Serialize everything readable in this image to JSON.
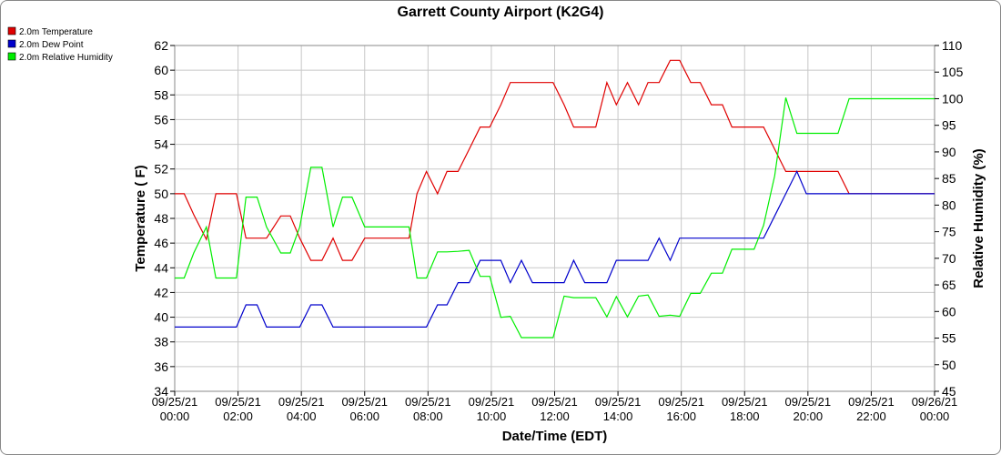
{
  "chart_data": {
    "type": "line",
    "title": "Garrett County Airport (K2G4)",
    "xlabel": "Date/Time (EDT)",
    "ylabel_left": "Temperature ( F)",
    "ylabel_right": "Relative Humidity (%)",
    "ylim_left": [
      34,
      62
    ],
    "ylim_right": [
      45,
      110
    ],
    "yticks_left": [
      34,
      36,
      38,
      40,
      42,
      44,
      46,
      48,
      50,
      52,
      54,
      56,
      58,
      60,
      62
    ],
    "yticks_right": [
      45,
      50,
      55,
      60,
      65,
      70,
      75,
      80,
      85,
      90,
      95,
      100,
      105,
      110
    ],
    "xlim_hours": [
      0,
      24
    ],
    "xticks": [
      {
        "h": 0,
        "date": "09/25/21",
        "time": "00:00"
      },
      {
        "h": 2,
        "date": "09/25/21",
        "time": "02:00"
      },
      {
        "h": 4,
        "date": "09/25/21",
        "time": "04:00"
      },
      {
        "h": 6,
        "date": "09/25/21",
        "time": "06:00"
      },
      {
        "h": 8,
        "date": "09/25/21",
        "time": "08:00"
      },
      {
        "h": 10,
        "date": "09/25/21",
        "time": "10:00"
      },
      {
        "h": 12,
        "date": "09/25/21",
        "time": "12:00"
      },
      {
        "h": 14,
        "date": "09/25/21",
        "time": "14:00"
      },
      {
        "h": 16,
        "date": "09/25/21",
        "time": "16:00"
      },
      {
        "h": 18,
        "date": "09/25/21",
        "time": "18:00"
      },
      {
        "h": 20,
        "date": "09/25/21",
        "time": "20:00"
      },
      {
        "h": 22,
        "date": "09/25/21",
        "time": "22:00"
      },
      {
        "h": 24,
        "date": "09/26/21",
        "time": "00:00"
      }
    ],
    "grid": true,
    "legend_position": "top-left",
    "series": [
      {
        "name": "2.0m Temperature",
        "color": "#e00000",
        "axis": "left",
        "x": [
          0,
          0.3,
          0.6,
          1.0,
          1.3,
          1.6,
          1.95,
          2.25,
          2.6,
          2.9,
          3.35,
          3.65,
          3.95,
          4.3,
          4.65,
          5.0,
          5.3,
          5.6,
          6.0,
          6.35,
          6.65,
          7.0,
          7.4,
          7.65,
          7.95,
          8.3,
          8.6,
          8.95,
          9.3,
          9.65,
          9.95,
          10.3,
          10.6,
          10.95,
          11.3,
          11.65,
          11.95,
          12.3,
          12.6,
          12.95,
          13.3,
          13.65,
          13.95,
          14.3,
          14.65,
          14.95,
          15.3,
          15.65,
          15.95,
          16.3,
          16.6,
          16.95,
          17.3,
          17.6,
          17.95,
          18.3,
          18.6,
          18.95,
          19.3,
          19.65,
          19.95,
          20.3,
          20.6,
          20.95,
          21.3,
          21.65,
          21.95,
          22.3,
          22.6,
          22.95,
          23.3,
          23.65,
          24.0
        ],
        "y": [
          50,
          50,
          48.3,
          46.3,
          50,
          50,
          50,
          46.4,
          46.4,
          46.4,
          48.2,
          48.2,
          46.4,
          44.6,
          44.6,
          46.4,
          44.6,
          44.6,
          46.4,
          46.4,
          46.4,
          46.4,
          46.4,
          50,
          51.8,
          50,
          51.8,
          51.8,
          53.6,
          55.4,
          55.4,
          57.2,
          59,
          59,
          59,
          59,
          59,
          57.2,
          55.4,
          55.4,
          55.4,
          59,
          57.2,
          59,
          57.2,
          59,
          59,
          60.8,
          60.8,
          59,
          59,
          57.2,
          57.2,
          55.4,
          55.4,
          55.4,
          55.4,
          53.6,
          51.8,
          51.8,
          51.8,
          51.8,
          51.8,
          51.8,
          50,
          50,
          50,
          50,
          50,
          50,
          50,
          50,
          50
        ]
      },
      {
        "name": "2.0m Dew Point",
        "color": "#0000cc",
        "axis": "left",
        "x": [
          0,
          0.3,
          0.6,
          1.0,
          1.3,
          1.6,
          1.95,
          2.25,
          2.6,
          2.9,
          3.35,
          3.65,
          3.95,
          4.3,
          4.65,
          5.0,
          5.3,
          5.6,
          6.0,
          6.35,
          6.65,
          7.0,
          7.4,
          7.95,
          8.3,
          8.6,
          8.95,
          9.3,
          9.65,
          9.95,
          10.3,
          10.6,
          10.95,
          11.3,
          11.65,
          11.95,
          12.3,
          12.6,
          12.95,
          13.3,
          13.65,
          13.95,
          14.3,
          14.65,
          14.95,
          15.3,
          15.65,
          15.95,
          16.3,
          16.6,
          16.95,
          17.3,
          17.6,
          17.95,
          18.3,
          18.6,
          18.95,
          19.3,
          19.65,
          19.95,
          20.3,
          20.6,
          20.95,
          21.3,
          21.65,
          21.95,
          22.3,
          22.6,
          22.95,
          23.3,
          23.65,
          24.0
        ],
        "y": [
          39.2,
          39.2,
          39.2,
          39.2,
          39.2,
          39.2,
          39.2,
          41,
          41,
          39.2,
          39.2,
          39.2,
          39.2,
          41,
          41,
          39.2,
          39.2,
          39.2,
          39.2,
          39.2,
          39.2,
          39.2,
          39.2,
          39.2,
          41,
          41,
          42.8,
          42.8,
          44.6,
          44.6,
          44.6,
          42.8,
          44.6,
          42.8,
          42.8,
          42.8,
          42.8,
          44.6,
          42.8,
          42.8,
          42.8,
          44.6,
          44.6,
          44.6,
          44.6,
          46.4,
          44.6,
          46.4,
          46.4,
          46.4,
          46.4,
          46.4,
          46.4,
          46.4,
          46.4,
          46.4,
          48.2,
          50,
          51.8,
          50,
          50,
          50,
          50,
          50,
          50,
          50,
          50,
          50,
          50,
          50,
          50,
          50
        ]
      },
      {
        "name": "2.0m Relative Humidity",
        "color": "#00ee00",
        "axis": "right",
        "x": [
          0,
          0.3,
          0.6,
          1.0,
          1.3,
          1.6,
          1.95,
          2.25,
          2.6,
          2.9,
          3.35,
          3.65,
          3.95,
          4.3,
          4.65,
          5.0,
          5.3,
          5.6,
          6.0,
          6.35,
          6.65,
          7.0,
          7.4,
          7.65,
          7.95,
          8.3,
          8.6,
          8.95,
          9.3,
          9.65,
          9.95,
          10.3,
          10.6,
          10.95,
          11.3,
          11.65,
          11.95,
          12.3,
          12.6,
          12.95,
          13.3,
          13.65,
          13.95,
          14.3,
          14.65,
          14.95,
          15.3,
          15.65,
          15.95,
          16.3,
          16.6,
          16.95,
          17.3,
          17.6,
          17.95,
          18.3,
          18.6,
          18.95,
          19.3,
          19.65,
          19.95,
          20.3,
          20.6,
          20.95,
          21.3,
          21.65,
          21.95,
          22.3,
          22.6,
          22.95,
          23.3,
          23.65,
          24.0
        ],
        "y": [
          66.3,
          66.3,
          71,
          75.9,
          66.3,
          66.3,
          66.3,
          81.5,
          81.5,
          75.9,
          71,
          71,
          75.9,
          87.1,
          87.1,
          75.9,
          81.5,
          81.5,
          75.9,
          75.9,
          75.9,
          75.9,
          75.9,
          66.3,
          66.3,
          71.2,
          71.2,
          71.3,
          71.5,
          66.6,
          66.6,
          58.9,
          59.1,
          55.1,
          55.1,
          55.1,
          55.1,
          62.9,
          62.6,
          62.6,
          62.6,
          59,
          62.8,
          59,
          62.9,
          63.1,
          59.1,
          59.3,
          59.1,
          63.4,
          63.4,
          67.2,
          67.2,
          71.7,
          71.7,
          71.7,
          76.2,
          85.5,
          100.2,
          93.5,
          93.5,
          93.5,
          93.5,
          93.5,
          100,
          100,
          100,
          100,
          100,
          100,
          100,
          100,
          100
        ]
      }
    ]
  }
}
